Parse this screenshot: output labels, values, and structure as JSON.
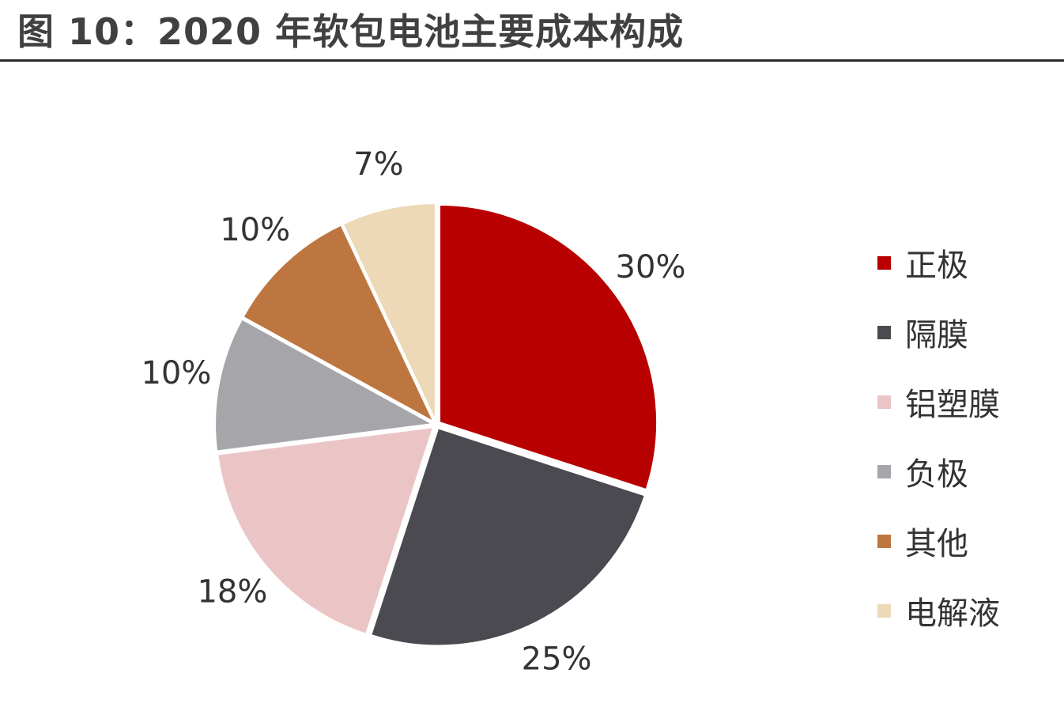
{
  "title": "图 10：2020 年软包电池主要成本构成",
  "chart_data": {
    "type": "pie",
    "title": "图 10：2020 年软包电池主要成本构成",
    "categories": [
      "正极",
      "隔膜",
      "铝塑膜",
      "负极",
      "其他",
      "电解液"
    ],
    "values": [
      30,
      25,
      18,
      10,
      10,
      7
    ],
    "labels": [
      "30%",
      "25%",
      "18%",
      "10%",
      "10%",
      "7%"
    ],
    "colors": [
      "#B80000",
      "#4A4A50",
      "#EBC5C5",
      "#A6A6AA",
      "#BE7640",
      "#EDD9B7"
    ],
    "legend_position": "right"
  }
}
